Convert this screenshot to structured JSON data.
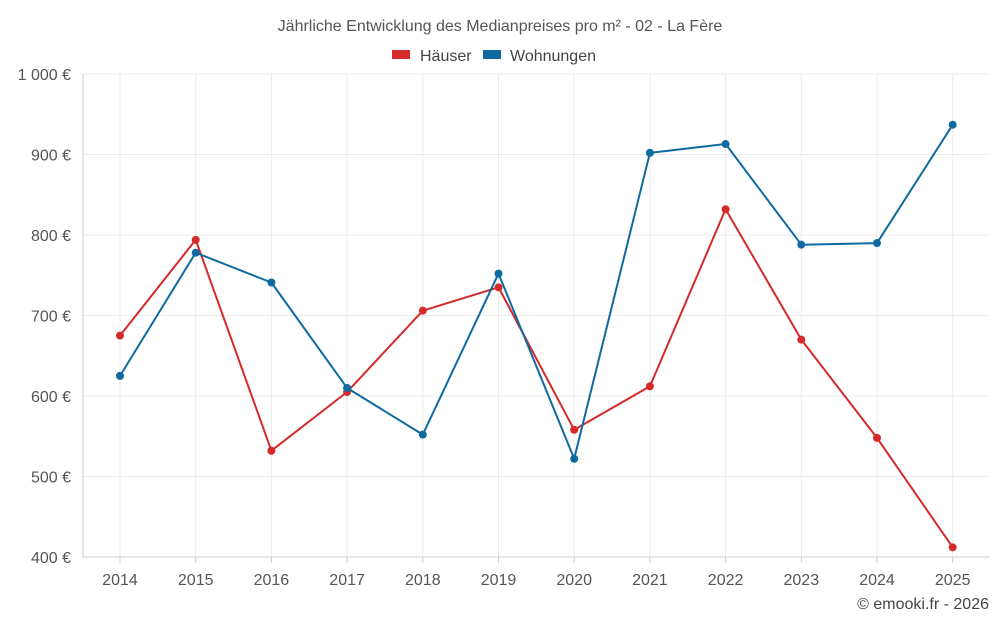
{
  "chart_data": {
    "type": "line",
    "title": "Jährliche Entwicklung des Medianpreises pro m² - 02 - La Fère",
    "x": [
      "2014",
      "2015",
      "2016",
      "2017",
      "2018",
      "2019",
      "2020",
      "2021",
      "2022",
      "2023",
      "2024",
      "2025"
    ],
    "series": [
      {
        "name": "Häuser",
        "color": "#d42a2a",
        "values": [
          675,
          794,
          532,
          605,
          706,
          735,
          558,
          612,
          832,
          670,
          548,
          412
        ]
      },
      {
        "name": "Wohnungen",
        "color": "#0e6aa0",
        "values": [
          625,
          778,
          741,
          610,
          552,
          752,
          522,
          902,
          913,
          788,
          790,
          937
        ]
      }
    ],
    "ylim": [
      400,
      1000
    ],
    "yticks": [
      400,
      500,
      600,
      700,
      800,
      900,
      1000
    ],
    "ytick_labels": [
      "400 €",
      "500 €",
      "600 €",
      "700 €",
      "800 €",
      "900 €",
      "1 000 €"
    ],
    "xlabel": "",
    "ylabel": "",
    "legend_position": "top-center",
    "grid": true
  },
  "credit": "© emooki.fr - 2026"
}
